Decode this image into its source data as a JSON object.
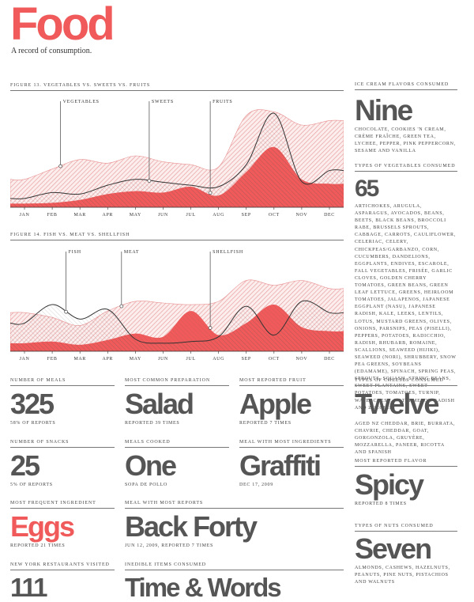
{
  "page": {
    "title": "Food",
    "subtitle": "A record of consumption."
  },
  "colors": {
    "accent": "#f05a5a",
    "hatch": "#e8a0a0",
    "text": "#4a4a4a"
  },
  "chart_data": [
    {
      "type": "area",
      "title": "Figure 13. Vegetables vs. Sweets vs. Fruits",
      "categories": [
        "JAN",
        "FEB",
        "MAR",
        "APR",
        "MAY",
        "JUN",
        "JUL",
        "AUG",
        "SEP",
        "OCT",
        "NOV",
        "DEC"
      ],
      "ylim": [
        0,
        140
      ],
      "annotations": [
        {
          "label": "VEGETABLES",
          "series": 0,
          "x": 1.3
        },
        {
          "label": "SWEETS",
          "series": 1,
          "x": 4.5
        },
        {
          "label": "FRUITS",
          "series": 2,
          "x": 6.7
        }
      ],
      "series": [
        {
          "style": "hatch",
          "values": [
            38,
            52,
            65,
            60,
            70,
            62,
            58,
            55,
            125,
            130,
            112,
            118
          ]
        },
        {
          "style": "outline",
          "values": [
            12,
            20,
            18,
            30,
            38,
            34,
            30,
            28,
            58,
            128,
            35,
            50
          ]
        },
        {
          "style": "solid",
          "values": [
            5,
            6,
            10,
            18,
            22,
            20,
            28,
            16,
            48,
            82,
            38,
            32
          ]
        }
      ]
    },
    {
      "type": "area",
      "title": "Figure 14. Fish vs. Meat vs. Shellfish",
      "categories": [
        "JAN",
        "FEB",
        "MAR",
        "APR",
        "MAY",
        "JUN",
        "JUL",
        "AUG",
        "SEP",
        "OCT",
        "NOV",
        "DEC"
      ],
      "ylim": [
        0,
        120
      ],
      "annotations": [
        {
          "label": "FISH",
          "series": 0,
          "x": 1.5
        },
        {
          "label": "MEAT",
          "series": 1,
          "x": 3.5
        },
        {
          "label": "SHELLFISH",
          "series": 2,
          "x": 6.7
        }
      ],
      "series": [
        {
          "style": "outline",
          "values": [
            35,
            58,
            40,
            52,
            15,
            10,
            12,
            18,
            56,
            20,
            62,
            48
          ]
        },
        {
          "style": "hatch",
          "values": [
            48,
            42,
            32,
            50,
            62,
            60,
            58,
            62,
            88,
            82,
            88,
            78
          ]
        },
        {
          "style": "solid",
          "values": [
            10,
            12,
            8,
            14,
            22,
            18,
            50,
            20,
            35,
            58,
            30,
            25
          ]
        }
      ]
    }
  ],
  "stats": {
    "ice_cream": {
      "label": "Ice cream flavors consumed",
      "value": "Nine",
      "detail": "Chocolate, Cookies 'n Cream, Crème Fraîche, Green Tea, Lychee, Pepper, Pink Peppercorn, Sesame and Vanilla"
    },
    "vegetables": {
      "label": "Types of vegetables consumed",
      "value": "65",
      "detail": "Artichokes, Arugula, Asparagus, Avocados, Beans, Beets, Black Beans, Broccoli Rabe, Brussels Sprouts, Cabbage, Carrots, Cauliflower, Celeriac, Celery, Chickpeas/Garbanzo, Corn, Cucumbers, Dandelions, Eggplants, Endives, Escarole, Fall Vegetables, Frisée, Garlic Cloves, Golden Cherry Tomatoes, Green Beans, Green Leaf Lettuce, Greens, Heirloom Tomatoes, Jalapenos, Japanese Eggplant (Nasu), Japanese Radish, Kale, Leeks, Lentils, Lotus, Mustard Greens, Olives, Onions, Parsnips, Peas (Piselli), Peppers, Potatoes, Radicchio, Radish, Rhubarb, Romaine, Scallions, Seaweed (Hijiki), Seaweed (Nori), Shrubbery, Snow Pea Greens, Soybeans (Edamame), Spinach, Spring Peas, Sprouts, Squash, String Beans, Sweet Plantains, Sweet Potatoes, Tomatoes, Turnip, Watercress, Watermelon Radish and Zucchini"
    },
    "meals": {
      "label": "Number of meals",
      "value": "325",
      "detail": "58% of reports"
    },
    "preparation": {
      "label": "Most common preparation",
      "value": "Salad",
      "detail": "Reported 39 times"
    },
    "fruit": {
      "label": "Most reported fruit",
      "value": "Apple",
      "detail": "Reported 7 times"
    },
    "cheeses": {
      "label": "Types of cheeses consumed",
      "value": "Twelve",
      "detail": "Aged NZ Cheddar, Brie, Burrata, Chavrie, Cheddar, Goat, Gorgonzola, Gruyère, Mozzarella, Paneer, Ricotta and Spanish"
    },
    "snacks": {
      "label": "Number of snacks",
      "value": "25",
      "detail": "5% of reports"
    },
    "cooked": {
      "label": "Meals cooked",
      "value": "One",
      "detail": "Sopa de Pollo"
    },
    "ingredients_meal": {
      "label": "Meal with most ingredients",
      "value": "Graffiti",
      "detail": "Dec 17, 2009"
    },
    "flavor": {
      "label": "Most reported flavor",
      "value": "Spicy",
      "detail": "Reported 8 times"
    },
    "ingredient": {
      "label": "Most frequent ingredient",
      "value": "Eggs",
      "detail": "Reported 21 times"
    },
    "reports_meal": {
      "label": "Meal with most reports",
      "value": "Back Forty",
      "detail": "Jun 12, 2009, reported 7 times"
    },
    "nuts": {
      "label": "Types of nuts consumed",
      "value": "Seven",
      "detail": "Almonds, Cashews, Hazelnuts, Peanuts, Pine Nuts, Pistachios and Walnuts"
    },
    "restaurants": {
      "label": "New York restaurants visited",
      "value": "111"
    },
    "inedible": {
      "label": "Inedible items consumed",
      "value": "Time & Words"
    }
  }
}
